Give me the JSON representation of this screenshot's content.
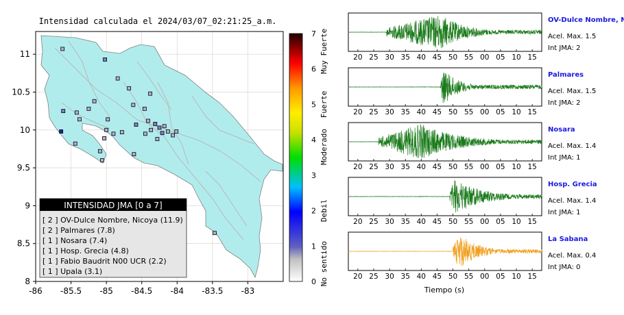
{
  "map": {
    "title": "Intensidad calculada el 2024/03/07_02:21:25_a.m.",
    "xlim": [
      -86,
      -82.5
    ],
    "ylim": [
      8,
      11.3
    ],
    "x_ticks": [
      "-86",
      "-85.5",
      "-85",
      "-84.5",
      "-84",
      "-83.5",
      "-83"
    ],
    "x_tick_values": [
      -86,
      -85.5,
      -85,
      -84.5,
      -84,
      -83.5,
      -83
    ],
    "y_ticks": [
      "8",
      "8.5",
      "9",
      "9.5",
      "10",
      "10.5",
      "11"
    ],
    "y_tick_values": [
      8,
      8.5,
      9,
      9.5,
      10,
      10.5,
      11
    ],
    "land_color": "#b1ecec",
    "stations": [
      {
        "lon": -85.62,
        "lat": 11.07,
        "level": 1
      },
      {
        "lon": -85.02,
        "lat": 10.93,
        "level": 2
      },
      {
        "lon": -84.84,
        "lat": 10.68,
        "level": 1
      },
      {
        "lon": -84.68,
        "lat": 10.55,
        "level": 1
      },
      {
        "lon": -84.38,
        "lat": 10.48,
        "level": 1
      },
      {
        "lon": -85.17,
        "lat": 10.38,
        "level": 1
      },
      {
        "lon": -85.25,
        "lat": 10.28,
        "level": 1
      },
      {
        "lon": -85.61,
        "lat": 10.25,
        "level": 2
      },
      {
        "lon": -85.42,
        "lat": 10.23,
        "level": 1
      },
      {
        "lon": -84.62,
        "lat": 10.33,
        "level": 1
      },
      {
        "lon": -84.46,
        "lat": 10.28,
        "level": 1
      },
      {
        "lon": -84.41,
        "lat": 10.12,
        "level": 1
      },
      {
        "lon": -84.58,
        "lat": 10.07,
        "level": 2
      },
      {
        "lon": -84.31,
        "lat": 10.08,
        "level": 2
      },
      {
        "lon": -84.25,
        "lat": 10.03,
        "level": 2
      },
      {
        "lon": -84.18,
        "lat": 10.05,
        "level": 1
      },
      {
        "lon": -84.13,
        "lat": 9.98,
        "level": 1
      },
      {
        "lon": -84.06,
        "lat": 9.93,
        "level": 1
      },
      {
        "lon": -84.21,
        "lat": 9.96,
        "level": 2
      },
      {
        "lon": -84.37,
        "lat": 10.0,
        "level": 1
      },
      {
        "lon": -84.45,
        "lat": 9.95,
        "level": 1
      },
      {
        "lon": -84.01,
        "lat": 9.98,
        "level": 1
      },
      {
        "lon": -84.28,
        "lat": 9.88,
        "level": 1
      },
      {
        "lon": -85.0,
        "lat": 10.0,
        "level": 1
      },
      {
        "lon": -84.78,
        "lat": 9.97,
        "level": 1
      },
      {
        "lon": -85.38,
        "lat": 10.14,
        "level": 1
      },
      {
        "lon": -85.64,
        "lat": 9.98,
        "level": 4
      },
      {
        "lon": -85.03,
        "lat": 9.89,
        "level": 1
      },
      {
        "lon": -84.9,
        "lat": 9.95,
        "level": 1
      },
      {
        "lon": -85.44,
        "lat": 9.82,
        "level": 1
      },
      {
        "lon": -85.06,
        "lat": 9.6,
        "level": 1
      },
      {
        "lon": -84.61,
        "lat": 9.68,
        "level": 1
      },
      {
        "lon": -85.09,
        "lat": 9.72,
        "level": 1
      },
      {
        "lon": -83.47,
        "lat": 8.64,
        "level": 1
      },
      {
        "lon": -84.98,
        "lat": 10.14,
        "level": 1
      }
    ],
    "scale": {
      "min": 0,
      "max": 7,
      "ticks": [
        "0",
        "1",
        "2",
        "3",
        "4",
        "5",
        "6",
        "7"
      ],
      "labels": [
        {
          "text": "No sentido",
          "value": 0.5
        },
        {
          "text": "Debil",
          "value": 2
        },
        {
          "text": "Moderado",
          "value": 3.8
        },
        {
          "text": "Fuerte",
          "value": 5
        },
        {
          "text": "Muy Fuerte",
          "value": 6.5
        }
      ]
    },
    "legend": {
      "title": "INTENSIDAD JMA [0 a 7]",
      "items": [
        "[ 2 ]  OV-Dulce Nombre, Nicoya (11.9)",
        "[ 2 ]  Palmares (7.8)",
        "[ 1 ]  Nosara (7.4)",
        "[ 1 ]  Hosp. Grecia (4.8)",
        "[ 1 ]  Fabio Baudrit N00 UCR (2.2)",
        "[ 1 ]  Upala (3.1)"
      ]
    }
  },
  "waveforms": {
    "xlabel": "Tiempo (s)",
    "panels": [
      {
        "station": "OV-Dulce Nombre, Nicoya",
        "accel": "Acel. Max. 1.5",
        "jma": "Int JMA: 2",
        "color": "#1a7a1a",
        "ticks": [
          "20",
          "25",
          "30",
          "35",
          "40",
          "45",
          "50",
          "55",
          "00",
          "05",
          "10",
          "15"
        ],
        "first_tick": 20,
        "onset": 29,
        "peak": 46,
        "amp": 1.0,
        "decay": 8
      },
      {
        "station": "Palmares",
        "accel": "Acel. Max. 1.5",
        "jma": "Int JMA: 2",
        "color": "#1a7a1a",
        "ticks": [
          "20",
          "25",
          "30",
          "35",
          "40",
          "45",
          "50",
          "55",
          "00",
          "05",
          "10",
          "15"
        ],
        "first_tick": 20,
        "onset": 46,
        "peak": 47,
        "amp": 1.0,
        "decay": 5
      },
      {
        "station": "Nosara",
        "accel": "Acel. Max. 1.4",
        "jma": "Int JMA: 1",
        "color": "#1a7a1a",
        "ticks": [
          "20",
          "25",
          "30",
          "35",
          "40",
          "45",
          "50",
          "55",
          "00",
          "05",
          "10",
          "15"
        ],
        "first_tick": 20,
        "onset": 26.5,
        "peak": 40,
        "amp": 1.0,
        "decay": 12
      },
      {
        "station": "Hosp. Grecia",
        "accel": "Acel. Max. 1.4",
        "jma": "Int JMA: 1",
        "color": "#1a7a1a",
        "ticks": [
          "20",
          "25",
          "30",
          "35",
          "40",
          "45",
          "50",
          "55",
          "00",
          "05",
          "10",
          "15"
        ],
        "first_tick": 20,
        "onset": 49,
        "peak": 50.5,
        "amp": 1.0,
        "decay": 9
      },
      {
        "station": "La Sabana",
        "accel": "Acel. Max. 0.4",
        "jma": "Int JMA: 0",
        "color": "#f0a020",
        "ticks": [
          "20",
          "25",
          "30",
          "35",
          "40",
          "45",
          "50",
          "55",
          "00",
          "05",
          "10",
          "15"
        ],
        "first_tick": 20,
        "onset": 50,
        "peak": 52,
        "amp": 1.0,
        "decay": 6
      }
    ],
    "time_range": [
      17,
      78
    ]
  }
}
